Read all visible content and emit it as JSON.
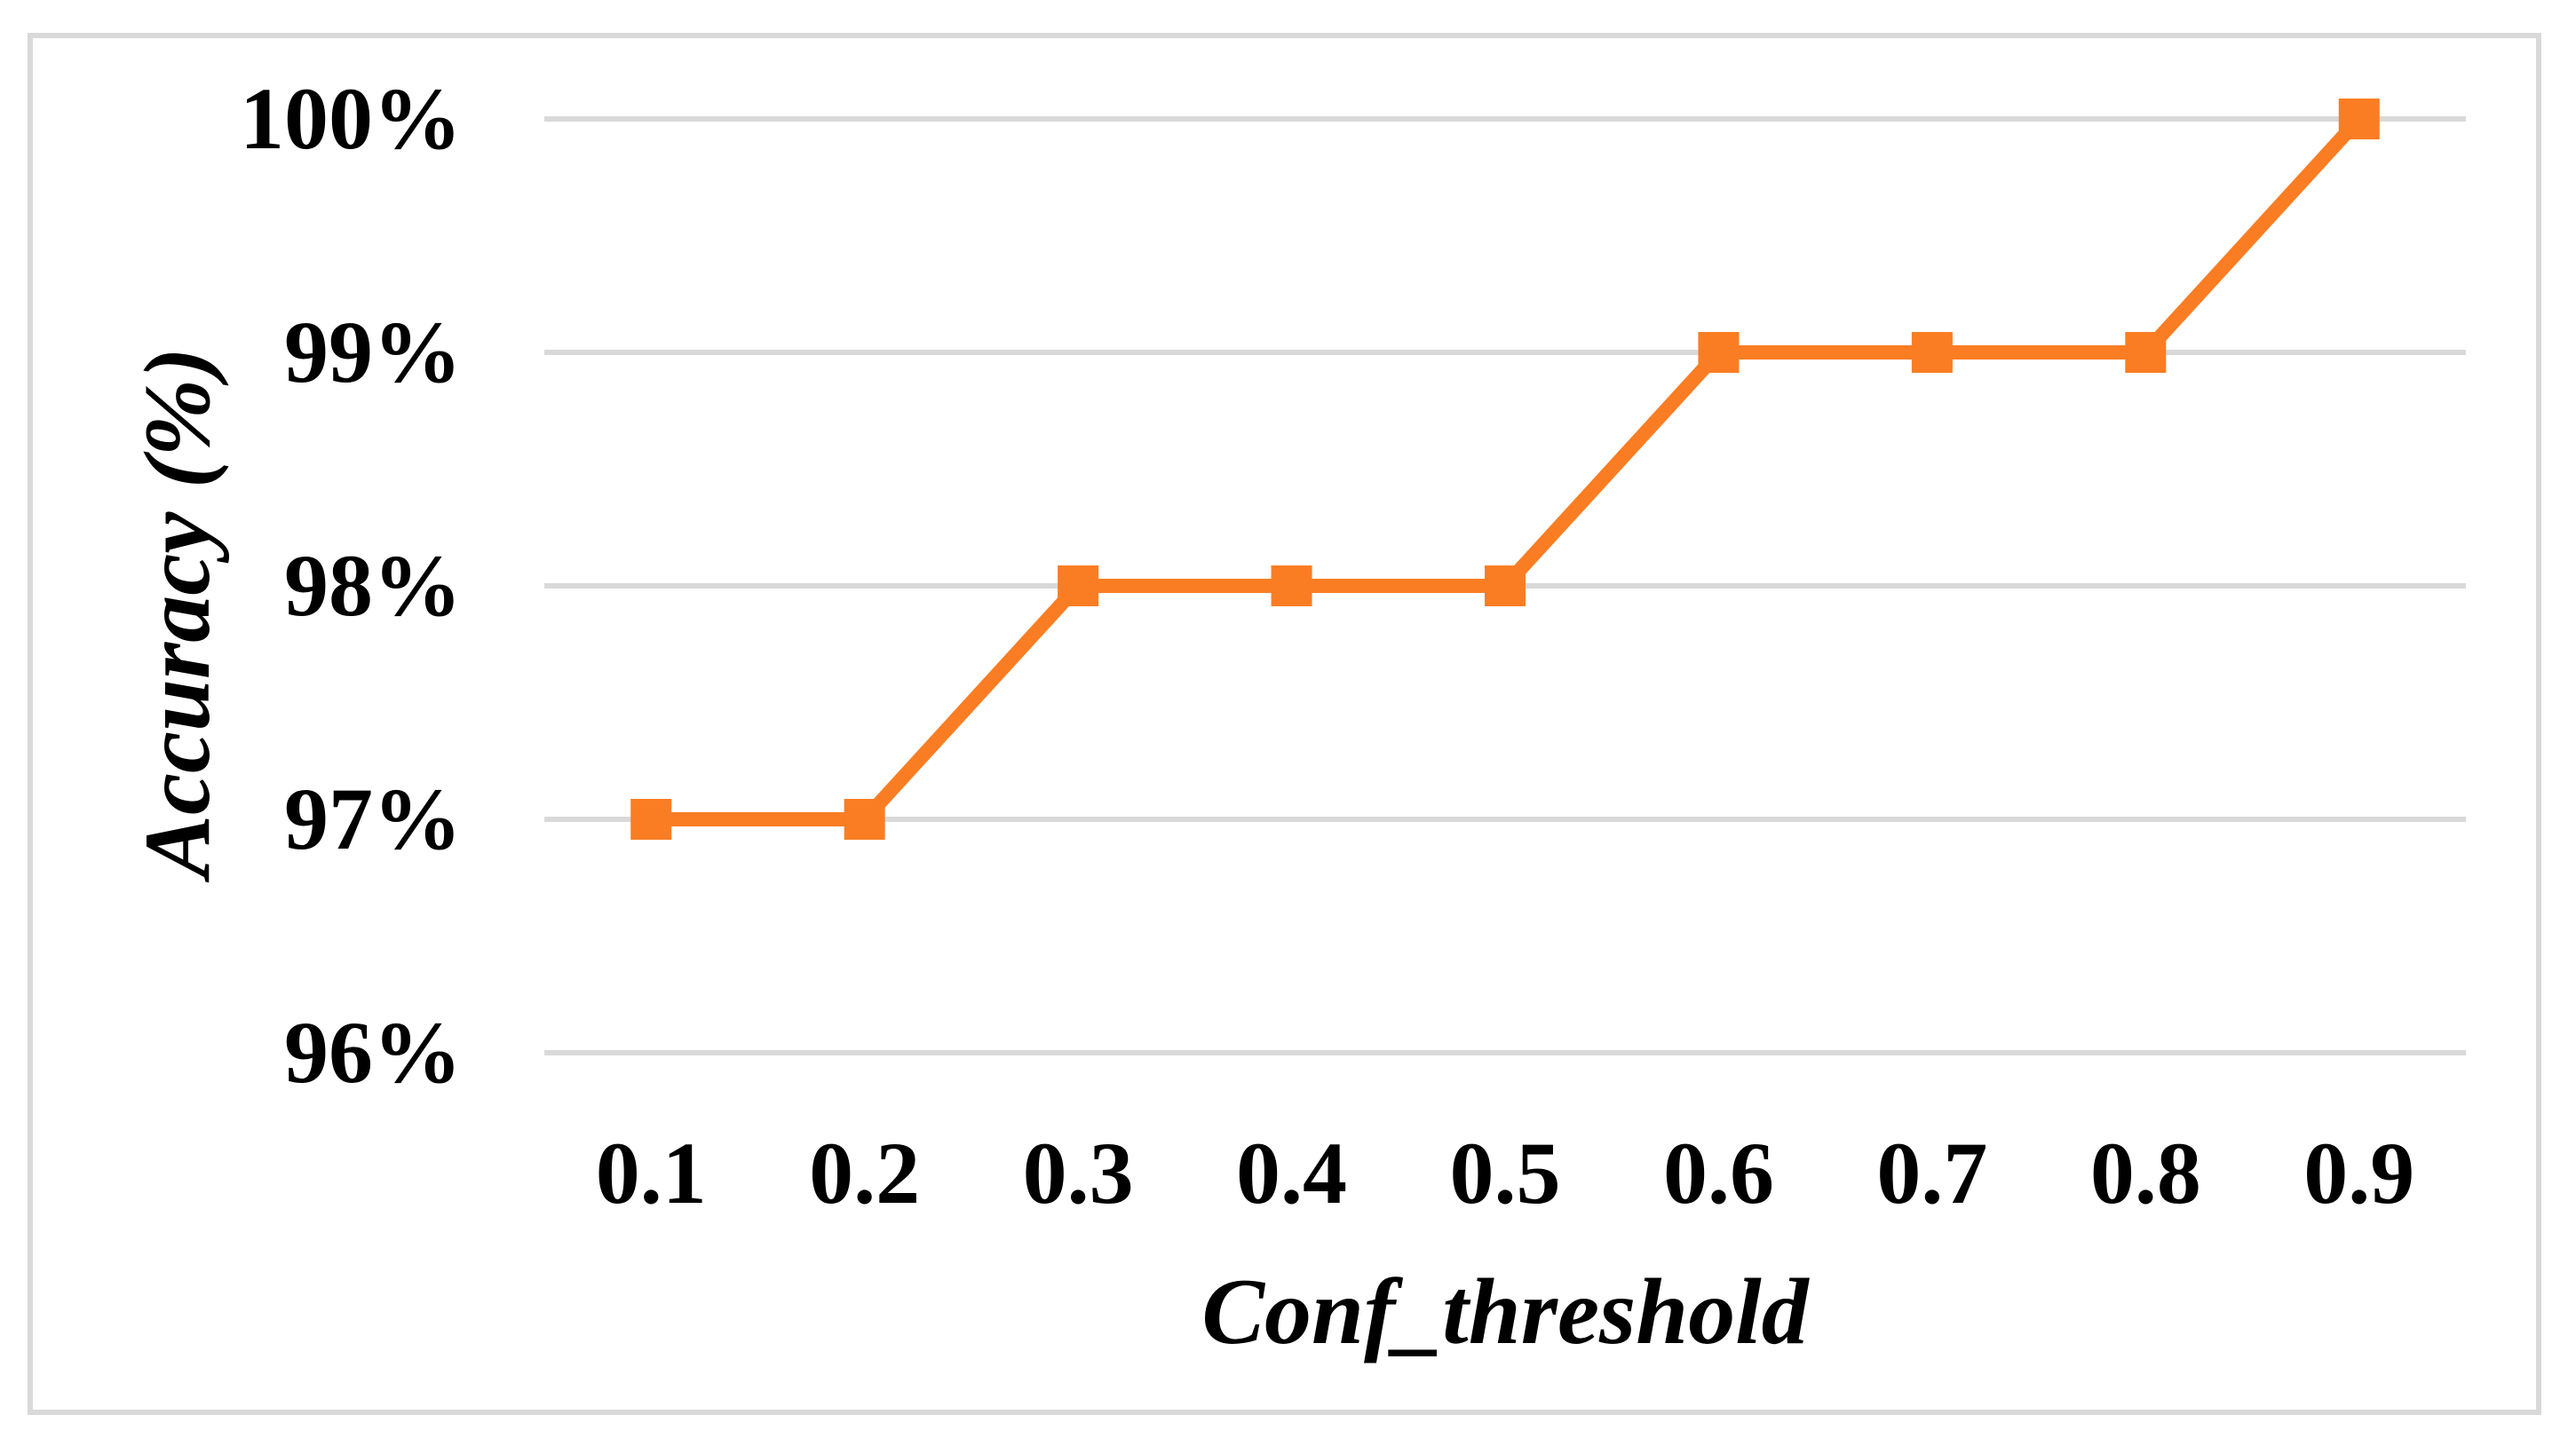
{
  "figure": {
    "background_color": "#FFFFFF",
    "border_color": "#D9D9D9"
  },
  "chart_data": {
    "type": "line",
    "title": "",
    "xlabel": "Conf_threshold",
    "ylabel": "Accuracy (%)",
    "categories": [
      "0.1",
      "0.2",
      "0.3",
      "0.4",
      "0.5",
      "0.6",
      "0.7",
      "0.8",
      "0.9"
    ],
    "series": [
      {
        "name": "Accuracy",
        "values": [
          97,
          97,
          98,
          98,
          98,
          99,
          99,
          99,
          100
        ]
      }
    ],
    "ylim": [
      96,
      100
    ],
    "yticks": [
      96,
      97,
      98,
      99,
      100
    ],
    "ytick_labels": [
      "96%",
      "97%",
      "98%",
      "99%",
      "100%"
    ],
    "grid": "horizontal",
    "gridline_color": "#D9D9D9",
    "legend_position": "none",
    "line_color": "#FA7D23",
    "marker_shape": "square"
  }
}
